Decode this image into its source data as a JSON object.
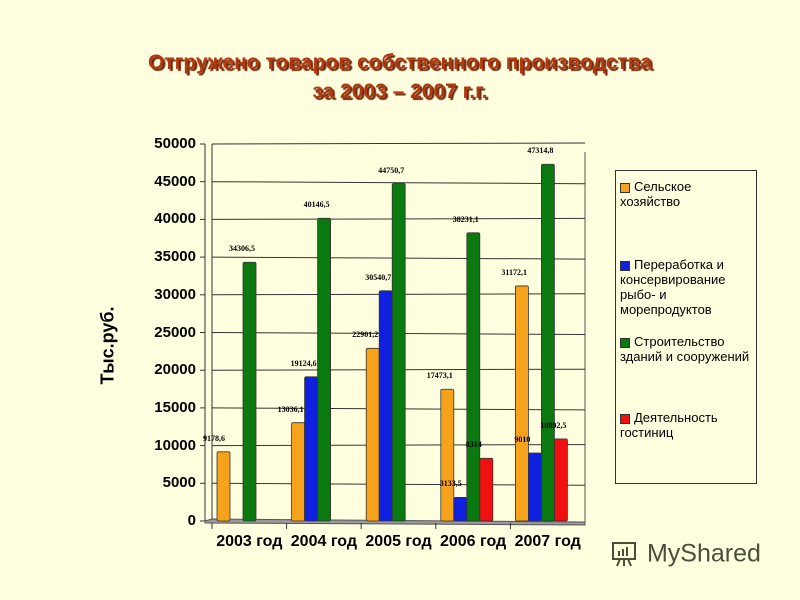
{
  "title_line1": "Отгружено товаров собственного производства",
  "title_line2": "за 2003 – 2007 г.г.",
  "watermark": "MyShared",
  "chart_data": {
    "type": "bar",
    "title": "Отгружено товаров собственного производства за 2003 – 2007 г.г.",
    "xlabel": "",
    "ylabel": "Тыс.руб.",
    "ylim": [
      0,
      50000
    ],
    "yticks": [
      0,
      5000,
      10000,
      15000,
      20000,
      25000,
      30000,
      35000,
      40000,
      45000,
      50000
    ],
    "grid": true,
    "legend_position": "right",
    "categories": [
      "2003 год",
      "2004 год",
      "2005 год",
      "2006 год",
      "2007 год"
    ],
    "series": [
      {
        "name": "Сельское хозяйство",
        "color": "#f7a21b",
        "values": [
          9178.6,
          13036.1,
          22901.2,
          17473.1,
          31172.1
        ],
        "labels": [
          "9178,6",
          "13036,1",
          "22901,2",
          "17473,1",
          "31172,1"
        ]
      },
      {
        "name": "Переработка и консервирование рыбо- и морепродуктов",
        "color": "#1020e0",
        "values": [
          null,
          19124.6,
          30540.7,
          3133.5,
          9010
        ],
        "labels": [
          "",
          "19124,6",
          "30540,7",
          "3133,5",
          "9010"
        ]
      },
      {
        "name": "Строительство зданий и сооружений",
        "color": "#0a7a10",
        "values": [
          34306.5,
          40146.5,
          44750.7,
          38231.1,
          47314.8
        ],
        "labels": [
          "34306,5",
          "40146,5",
          "44750,7",
          "38231,1",
          "47314,8"
        ]
      },
      {
        "name": "Деятельность гостиниц",
        "color": "#f01010",
        "values": [
          null,
          null,
          null,
          8314,
          10892.5
        ],
        "labels": [
          "",
          "",
          "",
          "8314",
          "10892,5"
        ]
      }
    ]
  }
}
